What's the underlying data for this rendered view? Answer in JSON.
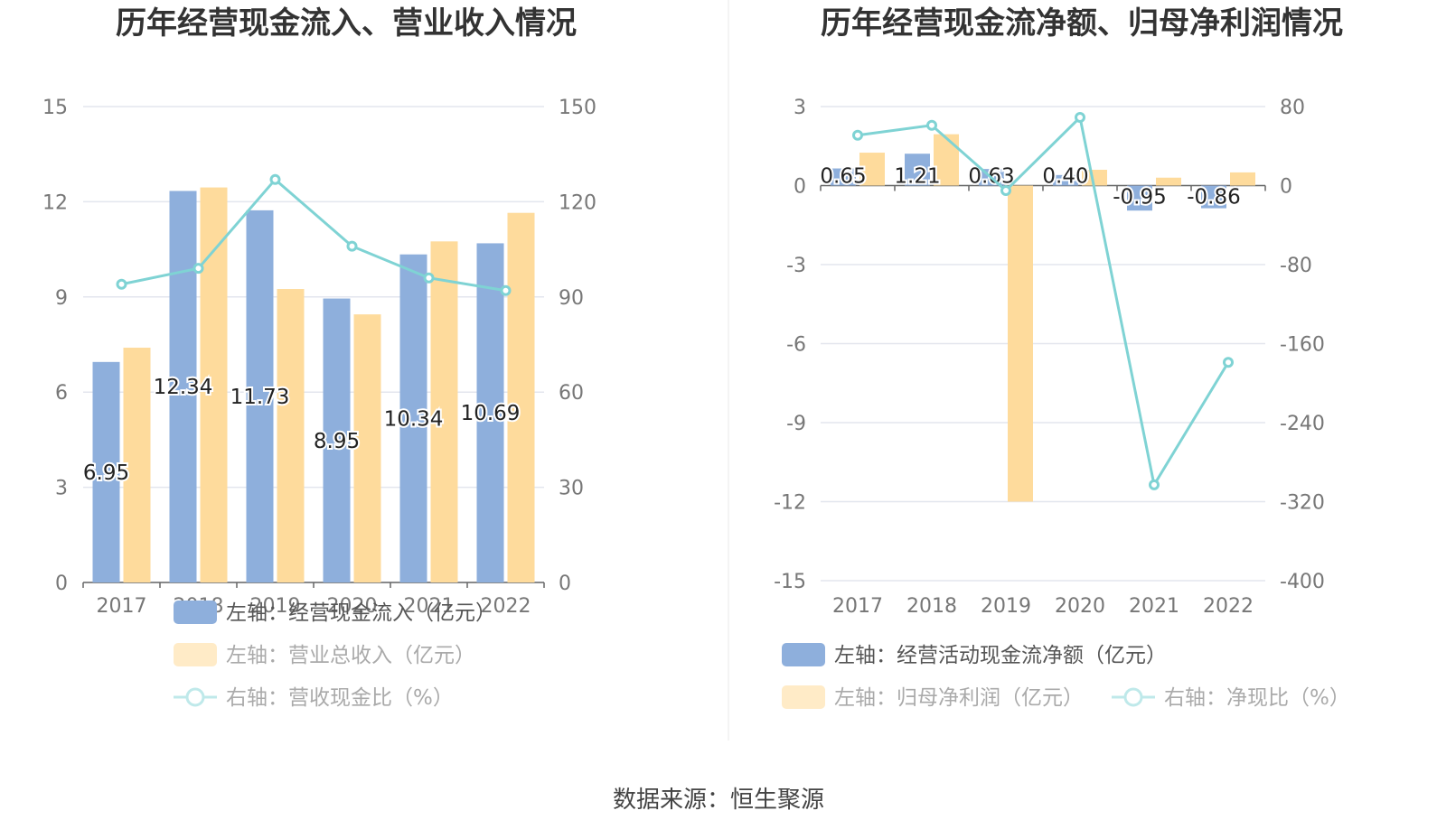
{
  "source": "数据来源：恒生聚源",
  "colors": {
    "blue": "#8eafdc",
    "orange": "#fedb9c",
    "teal": "#7fd3d4",
    "grid": "#e3e6ee",
    "legend_text": "#555555",
    "legend_text_dim": "#aaaaaa"
  },
  "chart_data": [
    {
      "type": "bar",
      "title": "历年经营现金流入、营业收入情况",
      "categories": [
        "2017",
        "2018",
        "2019",
        "2020",
        "2021",
        "2022"
      ],
      "left_axis": {
        "ticks": [
          "0",
          "3",
          "6",
          "9",
          "12",
          "15"
        ],
        "ylim": [
          0,
          15
        ]
      },
      "right_axis": {
        "ticks": [
          "0",
          "30",
          "60",
          "90",
          "120",
          "150"
        ],
        "ylim": [
          0,
          150
        ]
      },
      "series": [
        {
          "name": "左轴：经营现金流入（亿元）",
          "kind": "bar",
          "axis": "left",
          "color": "#8eafdc",
          "values": [
            6.95,
            12.34,
            11.73,
            8.95,
            10.34,
            10.69
          ],
          "labels": [
            "6.95",
            "12.34",
            "11.73",
            "8.95",
            "10.34",
            "10.69"
          ]
        },
        {
          "name": "左轴：营业总收入（亿元）",
          "kind": "bar",
          "axis": "left",
          "color": "#fedb9c",
          "values": [
            7.4,
            12.45,
            9.25,
            8.45,
            10.75,
            11.65
          ]
        },
        {
          "name": "右轴：营收现金比（%）",
          "kind": "line",
          "axis": "right",
          "color": "#7fd3d4",
          "values": [
            94,
            99,
            127,
            106,
            96,
            92
          ]
        }
      ]
    },
    {
      "type": "bar",
      "title": "历年经营现金流净额、归母净利润情况",
      "categories": [
        "2017",
        "2018",
        "2019",
        "2020",
        "2021",
        "2022"
      ],
      "left_axis": {
        "ticks": [
          "3",
          "0",
          "-3",
          "-6",
          "-9",
          "-12",
          "-15"
        ],
        "ylim": [
          -15,
          3
        ]
      },
      "right_axis": {
        "ticks": [
          "80",
          "0",
          "-80",
          "-160",
          "-240",
          "-320",
          "-400"
        ],
        "ylim": [
          -400,
          80
        ]
      },
      "series": [
        {
          "name": "左轴：经营活动现金流净额（亿元）",
          "kind": "bar",
          "axis": "left",
          "color": "#8eafdc",
          "values": [
            0.65,
            1.21,
            0.63,
            0.4,
            -0.95,
            -0.86
          ],
          "labels": [
            "0.65",
            "1.21",
            "0.63",
            "0.40",
            "-0.95",
            "-0.86"
          ]
        },
        {
          "name": "左轴：归母净利润（亿元）",
          "kind": "bar",
          "axis": "left",
          "color": "#fedb9c",
          "values": [
            1.25,
            1.95,
            -12.0,
            0.6,
            0.3,
            0.5
          ]
        },
        {
          "name": "右轴：净现比（%）",
          "kind": "line",
          "axis": "right",
          "color": "#7fd3d4",
          "values": [
            51,
            61,
            -5,
            69,
            -303,
            -179
          ]
        }
      ]
    }
  ]
}
